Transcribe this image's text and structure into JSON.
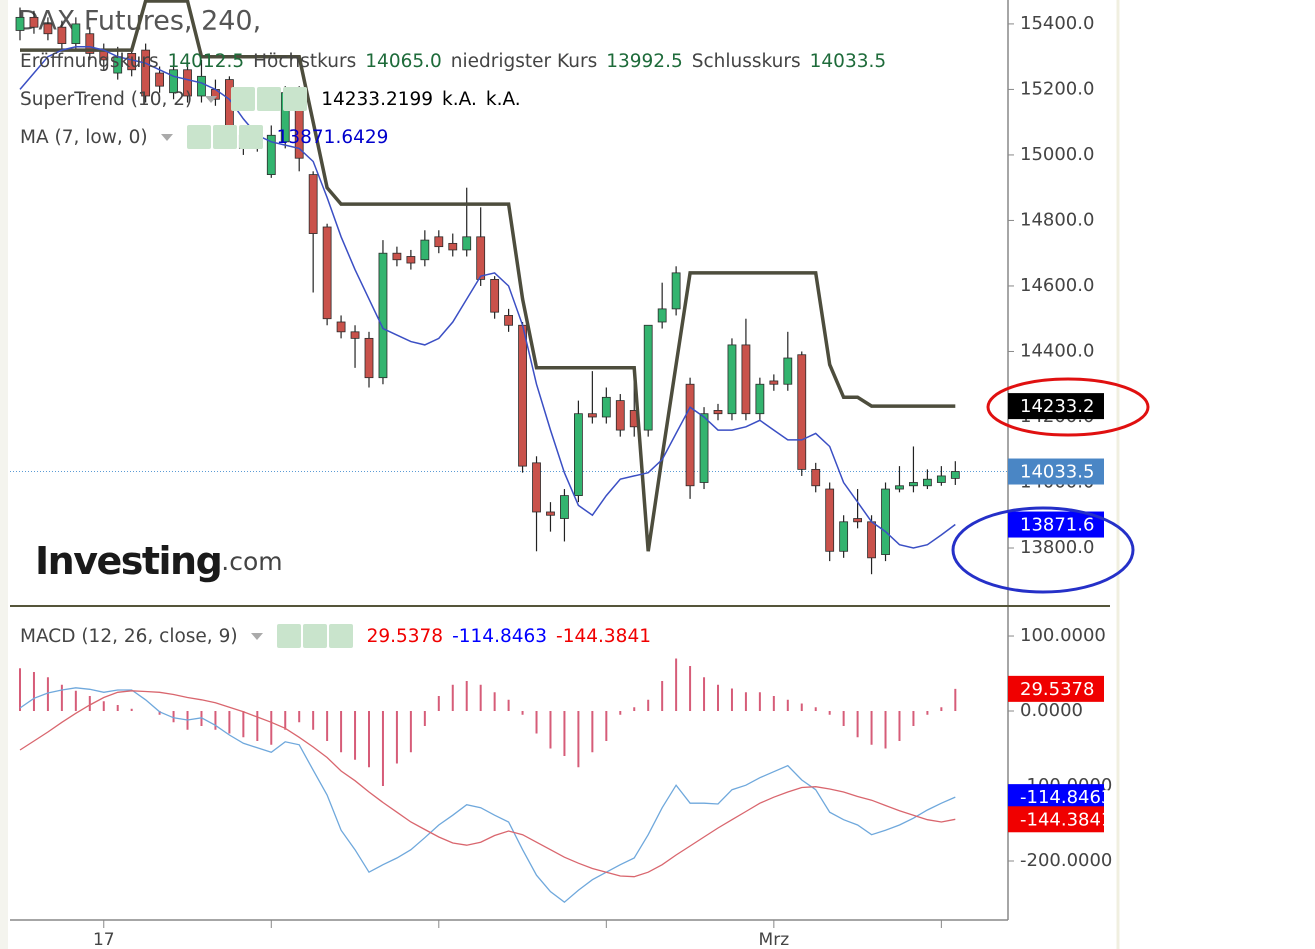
{
  "chart_data": [
    {
      "type": "candlestick",
      "title": "DAX Futures, 240,",
      "ylim": [
        13626,
        15473
      ],
      "yticks": [
        {
          "value": 13800,
          "label": "13800.0"
        },
        {
          "value": 14000,
          "label": "14000.0"
        },
        {
          "value": 14200,
          "label": "14200.0"
        },
        {
          "value": 14400,
          "label": "14400.0"
        },
        {
          "value": 14600,
          "label": "14600.0"
        },
        {
          "value": 14800,
          "label": "14800.0"
        },
        {
          "value": 15000,
          "label": "15000.0"
        },
        {
          "value": 15200,
          "label": "15200.0"
        },
        {
          "value": 15400,
          "label": "15400.0"
        }
      ],
      "up_color": "#33b46f",
      "down_color": "#c9524b",
      "close_line_color": "#5b9bd5",
      "open": [
        15380,
        15420,
        15400,
        15390,
        15340,
        15370,
        15320,
        15250,
        15310,
        15320,
        15250,
        15190,
        15260,
        15180,
        15200,
        15230,
        15060,
        15020,
        14940,
        15040,
        15200,
        14940,
        14780,
        14490,
        14460,
        14440,
        14320,
        14700,
        14690,
        14680,
        14750,
        14730,
        14710,
        14750,
        14620,
        14510,
        14480,
        14060,
        13910,
        13890,
        13960,
        14210,
        14200,
        14250,
        14220,
        14160,
        14490,
        14530,
        14300,
        14000,
        14220,
        14210,
        14420,
        14210,
        14310,
        14300,
        14390,
        14040,
        13980,
        13790,
        13890,
        13880,
        13780,
        13980,
        13990,
        13990,
        14000,
        14012.5
      ],
      "high": [
        15450,
        15440,
        15420,
        15410,
        15420,
        15390,
        15340,
        15330,
        15330,
        15340,
        15270,
        15290,
        15280,
        15290,
        15230,
        15240,
        15080,
        15080,
        15090,
        15210,
        15210,
        14950,
        14790,
        14510,
        14480,
        14460,
        14740,
        14720,
        14710,
        14770,
        14770,
        14760,
        14900,
        14840,
        14630,
        14530,
        14490,
        14080,
        13940,
        13980,
        14250,
        14340,
        14290,
        14270,
        14330,
        14480,
        14610,
        14660,
        14320,
        14230,
        14240,
        14440,
        14500,
        14320,
        14330,
        14460,
        14400,
        14060,
        14000,
        13900,
        13980,
        13900,
        14000,
        14050,
        14110,
        14040,
        14050,
        14065
      ],
      "low": [
        15350,
        15370,
        15350,
        15320,
        15320,
        15290,
        15260,
        15230,
        15240,
        15160,
        15190,
        15170,
        15160,
        15160,
        15150,
        15020,
        15000,
        15010,
        14930,
        15020,
        14950,
        14580,
        14480,
        14440,
        14350,
        14290,
        14300,
        14660,
        14650,
        14660,
        14700,
        14690,
        14690,
        14600,
        14500,
        14460,
        14030,
        13790,
        13850,
        13820,
        13940,
        14180,
        14180,
        14140,
        14140,
        14140,
        14470,
        14510,
        13950,
        13980,
        14190,
        14190,
        14190,
        14190,
        14280,
        14280,
        14020,
        13970,
        13760,
        13770,
        13860,
        13720,
        13760,
        13970,
        13970,
        13980,
        13990,
        13992.5
      ],
      "close": [
        15420,
        15390,
        15370,
        15340,
        15400,
        15310,
        15290,
        15300,
        15260,
        15180,
        15210,
        15260,
        15180,
        15240,
        15170,
        15050,
        15020,
        15060,
        15060,
        15190,
        14990,
        14760,
        14500,
        14460,
        14440,
        14320,
        14700,
        14680,
        14670,
        14740,
        14720,
        14710,
        14750,
        14620,
        14520,
        14480,
        14050,
        13910,
        13900,
        13960,
        14210,
        14200,
        14260,
        14160,
        14170,
        14480,
        14530,
        14640,
        13990,
        14210,
        14210,
        14420,
        14210,
        14300,
        14300,
        14380,
        14040,
        13990,
        13790,
        13880,
        13880,
        13770,
        13980,
        13990,
        14000,
        14010,
        14020,
        14033.5
      ],
      "ohlc_legend": [
        {
          "label": "Eröffnungskurs",
          "value": "14012.5"
        },
        {
          "label": "Höchstkurs",
          "value": "14065.0"
        },
        {
          "label": "niedrigster Kurs",
          "value": "13992.5"
        },
        {
          "label": "Schlusskurs",
          "value": "14033.5"
        }
      ],
      "overlays": [
        {
          "name": "SuperTrend (10, 2)",
          "color": "#4d4d3d",
          "value_color": "#000000",
          "tag": "14233.2",
          "tag_color": "#000000",
          "legend_values": [
            "14233.2199",
            "k.A.",
            "k.A."
          ],
          "values": [
            15320,
            15320,
            15320,
            15320,
            15320,
            15320,
            15320,
            15320,
            15320,
            15470,
            15470,
            15470,
            15470,
            15300,
            15300,
            15300,
            15300,
            15300,
            15300,
            15300,
            15300,
            15100,
            14900,
            14850,
            14850,
            14850,
            14850,
            14850,
            14850,
            14850,
            14850,
            14850,
            14850,
            14850,
            14850,
            14850,
            14560,
            14350,
            14350,
            14350,
            14350,
            14350,
            14350,
            14350,
            14350,
            13790,
            14080,
            14360,
            14640,
            14640,
            14640,
            14640,
            14640,
            14640,
            14640,
            14640,
            14640,
            14640,
            14360,
            14260,
            14260,
            14233.2199,
            14233.2199,
            14233.2199,
            14233.2199,
            14233.2199,
            14233.2199,
            14233.2199
          ]
        },
        {
          "name": "MA (7, low, 0)",
          "color": "#3b4fc4",
          "value_color": "#0000cc",
          "tag": "13871.6",
          "tag_color": "#0000ff",
          "legend_values": [
            "13871.6429"
          ],
          "values": [
            15200,
            15250,
            15300,
            15320,
            15330,
            15330,
            15320,
            15300,
            15290,
            15280,
            15260,
            15240,
            15230,
            15220,
            15200,
            15170,
            15110,
            15060,
            15040,
            15030,
            15020,
            14980,
            14870,
            14750,
            14650,
            14560,
            14470,
            14450,
            14430,
            14420,
            14440,
            14490,
            14560,
            14630,
            14640,
            14600,
            14480,
            14300,
            14160,
            14030,
            13930,
            13900,
            13960,
            14010,
            14020,
            14030,
            14070,
            14150,
            14230,
            14200,
            14160,
            14160,
            14170,
            14190,
            14160,
            14130,
            14130,
            14150,
            14110,
            14000,
            13940,
            13880,
            13850,
            13810,
            13800,
            13810,
            13840,
            13871.6429
          ]
        }
      ],
      "logo": {
        "name": "Investing",
        "suffix": ".com"
      }
    },
    {
      "type": "macd",
      "title": "MACD (12, 26, close, 9)",
      "ylim": [
        -278.7,
        138.7
      ],
      "yticks": [
        {
          "value": -200,
          "label": "-200.0000"
        },
        {
          "value": -100,
          "label": "-100.0000"
        },
        {
          "value": 0,
          "label": "0.0000"
        },
        {
          "value": 100,
          "label": "100.0000"
        }
      ],
      "categories": [
        null,
        null,
        null,
        null,
        null,
        null,
        "17",
        null,
        null,
        null,
        null,
        null,
        null,
        null,
        null,
        null,
        null,
        null,
        null,
        null,
        null,
        null,
        null,
        null,
        null,
        null,
        null,
        null,
        null,
        null,
        null,
        null,
        null,
        null,
        null,
        null,
        null,
        null,
        null,
        null,
        null,
        null,
        null,
        null,
        null,
        null,
        null,
        null,
        null,
        null,
        null,
        null,
        null,
        null,
        "Mrz",
        null,
        null,
        null,
        null,
        null,
        null,
        null,
        null,
        null,
        null,
        null,
        null,
        null
      ],
      "xticks": [
        6,
        18,
        30,
        42,
        54,
        66
      ],
      "histogram": {
        "color": "#d65c78",
        "values": [
          57,
          52,
          45,
          35,
          27,
          20,
          13,
          8,
          3,
          0,
          -5,
          -15,
          -25,
          -20,
          -25,
          -30,
          -35,
          -40,
          -45,
          -25,
          -15,
          -25,
          -40,
          -55,
          -65,
          -75,
          -100,
          -70,
          -55,
          -20,
          20,
          35,
          40,
          35,
          25,
          15,
          -5,
          -30,
          -50,
          -60,
          -75,
          -55,
          -40,
          -5,
          5,
          15,
          40,
          70,
          60,
          45,
          35,
          30,
          25,
          25,
          20,
          15,
          10,
          5,
          -5,
          -20,
          -35,
          -45,
          -50,
          -40,
          -20,
          -5,
          5,
          29.5378
        ]
      },
      "series": [
        {
          "color": "#6fa8dc",
          "values": [
            4,
            17,
            24,
            28,
            31,
            29,
            25,
            28,
            28,
            15,
            -1,
            -9,
            -12,
            -9,
            -19,
            -32,
            -43,
            -49,
            -55,
            -41,
            -45,
            -79,
            -112,
            -159,
            -185,
            -215,
            -205,
            -196,
            -185,
            -169,
            -152,
            -139,
            -125,
            -129,
            -139,
            -148,
            -185,
            -219,
            -241,
            -255,
            -239,
            -225,
            -215,
            -205,
            -196,
            -165,
            -129,
            -99,
            -123,
            -123,
            -124,
            -105,
            -99,
            -89,
            -81,
            -73,
            -92,
            -105,
            -135,
            -145,
            -152,
            -165,
            -159,
            -152,
            -143,
            -132,
            -123,
            -114.8463
          ]
        },
        {
          "color": "#d9666e",
          "values": [
            -52,
            -40,
            -28,
            -15,
            -3,
            8,
            18,
            25,
            27,
            26,
            25,
            22,
            18,
            15,
            11,
            5,
            -1,
            -8,
            -15,
            -23,
            -35,
            -48,
            -62,
            -80,
            -93,
            -108,
            -122,
            -135,
            -148,
            -158,
            -168,
            -176,
            -179,
            -175,
            -166,
            -160,
            -165,
            -175,
            -185,
            -195,
            -203,
            -210,
            -215,
            -220,
            -221,
            -215,
            -205,
            -192,
            -180,
            -168,
            -156,
            -145,
            -134,
            -123,
            -115,
            -108,
            -102,
            -101,
            -104,
            -108,
            -114,
            -119,
            -126,
            -133,
            -139,
            -145,
            -148,
            -144.3841
          ]
        }
      ],
      "legend_values": [
        {
          "text": "29.5378",
          "color": "#f00000"
        },
        {
          "text": "-114.8463",
          "color": "#0000ff"
        },
        {
          "text": "-144.3841",
          "color": "#f00000"
        }
      ]
    }
  ]
}
